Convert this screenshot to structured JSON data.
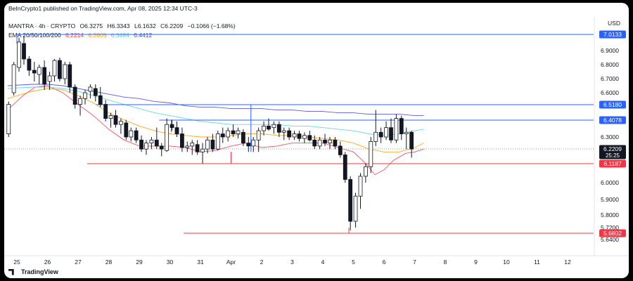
{
  "header": {
    "published": "BeInCrypto1 published on TradingView.com, Apr 08, 2025 12:34 UTC-3",
    "symbol": "MANTRA · 4h · CRYPTO",
    "ohlc": {
      "o": "O6.3275",
      "h": "H6.3343",
      "l": "L6.1632",
      "c": "C6.2209",
      "chg": "−0.1066 (−1.68%)"
    },
    "ema_label": "EMA 20/50/100/200",
    "ema_values": [
      {
        "value": "6.2214",
        "color": "#f23645"
      },
      {
        "value": "6.2605",
        "color": "#ff9800"
      },
      {
        "value": "6.3484",
        "color": "#4dd0e1"
      },
      {
        "value": "6.4412",
        "color": "#3f3fd0"
      }
    ],
    "currency": "USD"
  },
  "footer": {
    "brand": "TradingView"
  },
  "chart_data": {
    "type": "candlestick",
    "x_tick_labels": [
      "25",
      "26",
      "27",
      "28",
      "29",
      "30",
      "31",
      "Apr",
      "2",
      "3",
      "4",
      "5",
      "6",
      "7",
      "8",
      "9",
      "10",
      "11",
      "12"
    ],
    "y_tick_labels": [
      "6.9000",
      "6.8000",
      "6.7000",
      "6.6000",
      "6.3000",
      "6.0000",
      "5.9000",
      "5.8000",
      "5.7200",
      "5.6400"
    ],
    "y_ticks": [
      6.9,
      6.8,
      6.7,
      6.6,
      6.3,
      6.0,
      5.9,
      5.8,
      5.72,
      5.64
    ],
    "price_labels": [
      {
        "text": "7.0133",
        "value": 7.0133,
        "color": "#2962ff"
      },
      {
        "text": "6.5180",
        "value": 6.518,
        "color": "#2962ff"
      },
      {
        "text": "6.4078",
        "value": 6.4078,
        "color": "#2962ff"
      },
      {
        "text": "6.2209",
        "sub": "25:25",
        "value": 6.2209,
        "color": "#131722"
      },
      {
        "text": "6.1187",
        "value": 6.1187,
        "color": "#f23645"
      },
      {
        "text": "5.6802",
        "value": 5.6802,
        "color": "#f23645"
      }
    ],
    "horizontal_levels": [
      {
        "value": 7.0133,
        "color": "#2962ff",
        "from": 25.0
      },
      {
        "value": 6.518,
        "color": "#2962ff",
        "from": 27.6
      },
      {
        "value": 6.4078,
        "color": "#2962ff",
        "from": 29.65
      },
      {
        "value": 6.1187,
        "color": "#f23645",
        "from": 27.3
      },
      {
        "value": 5.6802,
        "color": "#f23645",
        "from": 30.45
      }
    ],
    "ema_lines": [
      {
        "name": "EMA 20",
        "color": "#f23645",
        "points": [
          [
            24.7,
            6.48
          ],
          [
            25.2,
            6.58
          ],
          [
            25.6,
            6.64
          ],
          [
            26.0,
            6.65
          ],
          [
            26.5,
            6.6
          ],
          [
            27.0,
            6.52
          ],
          [
            27.5,
            6.44
          ],
          [
            28.0,
            6.35
          ],
          [
            28.5,
            6.28
          ],
          [
            29.0,
            6.24
          ],
          [
            29.5,
            6.24
          ],
          [
            30.0,
            6.24
          ],
          [
            30.5,
            6.23
          ],
          [
            31.0,
            6.2
          ],
          [
            31.5,
            6.21
          ],
          [
            32.0,
            6.24
          ],
          [
            32.5,
            6.26
          ],
          [
            33.0,
            6.23
          ],
          [
            33.5,
            6.24
          ],
          [
            34.0,
            6.26
          ],
          [
            34.5,
            6.26
          ],
          [
            35.0,
            6.26
          ],
          [
            35.5,
            6.23
          ],
          [
            36.0,
            6.2
          ],
          [
            36.4,
            6.12
          ],
          [
            36.7,
            6.05
          ],
          [
            37.0,
            6.08
          ],
          [
            37.3,
            6.14
          ],
          [
            37.7,
            6.19
          ],
          [
            38.0,
            6.2
          ],
          [
            38.3,
            6.22
          ]
        ]
      },
      {
        "name": "EMA 50",
        "color": "#ff9800",
        "points": [
          [
            24.7,
            6.56
          ],
          [
            25.5,
            6.61
          ],
          [
            26.0,
            6.63
          ],
          [
            26.5,
            6.62
          ],
          [
            27.0,
            6.58
          ],
          [
            27.5,
            6.53
          ],
          [
            28.0,
            6.46
          ],
          [
            28.5,
            6.41
          ],
          [
            29.0,
            6.37
          ],
          [
            29.5,
            6.34
          ],
          [
            30.0,
            6.32
          ],
          [
            30.5,
            6.31
          ],
          [
            31.0,
            6.3
          ],
          [
            31.5,
            6.3
          ],
          [
            32.0,
            6.31
          ],
          [
            32.5,
            6.32
          ],
          [
            33.0,
            6.32
          ],
          [
            33.5,
            6.31
          ],
          [
            34.0,
            6.31
          ],
          [
            34.5,
            6.3
          ],
          [
            35.0,
            6.29
          ],
          [
            35.5,
            6.28
          ],
          [
            36.0,
            6.26
          ],
          [
            36.5,
            6.22
          ],
          [
            37.0,
            6.2
          ],
          [
            37.5,
            6.2
          ],
          [
            38.0,
            6.23
          ],
          [
            38.3,
            6.26
          ]
        ]
      },
      {
        "name": "EMA 100",
        "color": "#4dd0e1",
        "points": [
          [
            24.7,
            6.63
          ],
          [
            25.5,
            6.64
          ],
          [
            26.0,
            6.64
          ],
          [
            26.5,
            6.63
          ],
          [
            27.0,
            6.61
          ],
          [
            27.5,
            6.58
          ],
          [
            28.0,
            6.55
          ],
          [
            28.5,
            6.52
          ],
          [
            29.0,
            6.49
          ],
          [
            29.5,
            6.46
          ],
          [
            30.0,
            6.44
          ],
          [
            30.5,
            6.42
          ],
          [
            31.0,
            6.4
          ],
          [
            31.5,
            6.39
          ],
          [
            32.0,
            6.38
          ],
          [
            32.5,
            6.38
          ],
          [
            33.0,
            6.38
          ],
          [
            33.5,
            6.38
          ],
          [
            34.0,
            6.37
          ],
          [
            34.5,
            6.37
          ],
          [
            35.0,
            6.36
          ],
          [
            35.5,
            6.35
          ],
          [
            36.0,
            6.34
          ],
          [
            36.5,
            6.32
          ],
          [
            37.0,
            6.31
          ],
          [
            37.5,
            6.32
          ],
          [
            38.0,
            6.34
          ],
          [
            38.3,
            6.35
          ]
        ]
      },
      {
        "name": "EMA 200",
        "color": "#3f3fd0",
        "points": [
          [
            24.7,
            6.65
          ],
          [
            25.5,
            6.66
          ],
          [
            26.0,
            6.66
          ],
          [
            26.5,
            6.65
          ],
          [
            27.0,
            6.63
          ],
          [
            27.5,
            6.61
          ],
          [
            28.0,
            6.59
          ],
          [
            28.5,
            6.57
          ],
          [
            29.0,
            6.56
          ],
          [
            29.5,
            6.54
          ],
          [
            30.0,
            6.53
          ],
          [
            30.5,
            6.51
          ],
          [
            31.0,
            6.5
          ],
          [
            31.5,
            6.5
          ],
          [
            32.0,
            6.49
          ],
          [
            32.5,
            6.49
          ],
          [
            33.0,
            6.49
          ],
          [
            33.5,
            6.48
          ],
          [
            34.0,
            6.48
          ],
          [
            34.5,
            6.47
          ],
          [
            35.0,
            6.47
          ],
          [
            35.5,
            6.46
          ],
          [
            36.0,
            6.46
          ],
          [
            36.5,
            6.45
          ],
          [
            37.0,
            6.45
          ],
          [
            37.5,
            6.45
          ],
          [
            38.0,
            6.44
          ],
          [
            38.3,
            6.44
          ]
        ]
      }
    ],
    "candles": [
      {
        "t": 24.73,
        "o": 6.32,
        "h": 6.54,
        "l": 6.3,
        "c": 6.52
      },
      {
        "t": 24.9,
        "o": 6.6,
        "h": 6.82,
        "l": 6.58,
        "c": 6.8
      },
      {
        "t": 25.07,
        "o": 6.78,
        "h": 6.99,
        "l": 6.75,
        "c": 6.96
      },
      {
        "t": 25.23,
        "o": 6.95,
        "h": 7.0,
        "l": 6.8,
        "c": 6.84
      },
      {
        "t": 25.4,
        "o": 6.84,
        "h": 6.86,
        "l": 6.72,
        "c": 6.76
      },
      {
        "t": 25.57,
        "o": 6.76,
        "h": 6.82,
        "l": 6.68,
        "c": 6.74
      },
      {
        "t": 25.73,
        "o": 6.73,
        "h": 6.8,
        "l": 6.66,
        "c": 6.78
      },
      {
        "t": 25.9,
        "o": 6.78,
        "h": 6.83,
        "l": 6.62,
        "c": 6.66
      },
      {
        "t": 26.07,
        "o": 6.68,
        "h": 6.75,
        "l": 6.62,
        "c": 6.72
      },
      {
        "t": 26.23,
        "o": 6.72,
        "h": 6.84,
        "l": 6.68,
        "c": 6.83
      },
      {
        "t": 26.4,
        "o": 6.83,
        "h": 6.85,
        "l": 6.68,
        "c": 6.7
      },
      {
        "t": 26.57,
        "o": 6.7,
        "h": 6.82,
        "l": 6.66,
        "c": 6.8
      },
      {
        "t": 26.73,
        "o": 6.8,
        "h": 6.82,
        "l": 6.6,
        "c": 6.64
      },
      {
        "t": 26.9,
        "o": 6.64,
        "h": 6.66,
        "l": 6.49,
        "c": 6.52
      },
      {
        "t": 27.07,
        "o": 6.52,
        "h": 6.58,
        "l": 6.44,
        "c": 6.56
      },
      {
        "t": 27.23,
        "o": 6.56,
        "h": 6.62,
        "l": 6.52,
        "c": 6.6
      },
      {
        "t": 27.4,
        "o": 6.61,
        "h": 6.66,
        "l": 6.56,
        "c": 6.64
      },
      {
        "t": 27.57,
        "o": 6.63,
        "h": 6.66,
        "l": 6.54,
        "c": 6.58
      },
      {
        "t": 27.73,
        "o": 6.58,
        "h": 6.64,
        "l": 6.5,
        "c": 6.52
      },
      {
        "t": 27.9,
        "o": 6.52,
        "h": 6.55,
        "l": 6.4,
        "c": 6.42
      },
      {
        "t": 28.07,
        "o": 6.42,
        "h": 6.46,
        "l": 6.36,
        "c": 6.44
      },
      {
        "t": 28.23,
        "o": 6.44,
        "h": 6.48,
        "l": 6.36,
        "c": 6.38
      },
      {
        "t": 28.4,
        "o": 6.38,
        "h": 6.42,
        "l": 6.32,
        "c": 6.4
      },
      {
        "t": 28.57,
        "o": 6.39,
        "h": 6.41,
        "l": 6.28,
        "c": 6.3
      },
      {
        "t": 28.73,
        "o": 6.3,
        "h": 6.36,
        "l": 6.27,
        "c": 6.34
      },
      {
        "t": 28.9,
        "o": 6.34,
        "h": 6.36,
        "l": 6.26,
        "c": 6.28
      },
      {
        "t": 29.07,
        "o": 6.28,
        "h": 6.31,
        "l": 6.2,
        "c": 6.22
      },
      {
        "t": 29.23,
        "o": 6.22,
        "h": 6.28,
        "l": 6.18,
        "c": 6.26
      },
      {
        "t": 29.4,
        "o": 6.26,
        "h": 6.3,
        "l": 6.22,
        "c": 6.28
      },
      {
        "t": 29.57,
        "o": 6.28,
        "h": 6.36,
        "l": 6.22,
        "c": 6.24
      },
      {
        "t": 29.73,
        "o": 6.24,
        "h": 6.26,
        "l": 6.17,
        "c": 6.22
      },
      {
        "t": 29.9,
        "o": 6.21,
        "h": 6.42,
        "l": 6.2,
        "c": 6.38
      },
      {
        "t": 30.07,
        "o": 6.38,
        "h": 6.41,
        "l": 6.34,
        "c": 6.36
      },
      {
        "t": 30.23,
        "o": 6.36,
        "h": 6.4,
        "l": 6.3,
        "c": 6.32
      },
      {
        "t": 30.4,
        "o": 6.32,
        "h": 6.36,
        "l": 6.2,
        "c": 6.23
      },
      {
        "t": 30.57,
        "o": 6.23,
        "h": 6.27,
        "l": 6.2,
        "c": 6.24
      },
      {
        "t": 30.73,
        "o": 6.24,
        "h": 6.28,
        "l": 6.18,
        "c": 6.26
      },
      {
        "t": 30.9,
        "o": 6.25,
        "h": 6.28,
        "l": 6.18,
        "c": 6.2
      },
      {
        "t": 31.07,
        "o": 6.2,
        "h": 6.26,
        "l": 6.12,
        "c": 6.22
      },
      {
        "t": 31.23,
        "o": 6.22,
        "h": 6.3,
        "l": 6.19,
        "c": 6.28
      },
      {
        "t": 31.4,
        "o": 6.28,
        "h": 6.32,
        "l": 6.2,
        "c": 6.22
      },
      {
        "t": 31.57,
        "o": 6.22,
        "h": 6.34,
        "l": 6.21,
        "c": 6.32
      },
      {
        "t": 31.73,
        "o": 6.32,
        "h": 6.36,
        "l": 6.26,
        "c": 6.3
      },
      {
        "t": 31.9,
        "o": 6.3,
        "h": 6.36,
        "l": 6.27,
        "c": 6.34
      },
      {
        "t": 32.07,
        "o": 6.34,
        "h": 6.38,
        "l": 6.3,
        "c": 6.32
      },
      {
        "t": 32.23,
        "o": 6.32,
        "h": 6.36,
        "l": 6.29,
        "c": 6.34
      },
      {
        "t": 32.4,
        "o": 6.33,
        "h": 6.35,
        "l": 6.24,
        "c": 6.26
      },
      {
        "t": 32.57,
        "o": 6.26,
        "h": 6.3,
        "l": 6.2,
        "c": 6.24
      },
      {
        "t": 32.73,
        "o": 6.24,
        "h": 6.3,
        "l": 6.2,
        "c": 6.28
      },
      {
        "t": 32.9,
        "o": 6.28,
        "h": 6.36,
        "l": 6.2,
        "c": 6.34
      },
      {
        "t": 33.07,
        "o": 6.34,
        "h": 6.4,
        "l": 6.31,
        "c": 6.37
      },
      {
        "t": 33.23,
        "o": 6.37,
        "h": 6.42,
        "l": 6.34,
        "c": 6.35
      },
      {
        "t": 33.4,
        "o": 6.36,
        "h": 6.4,
        "l": 6.32,
        "c": 6.38
      },
      {
        "t": 33.57,
        "o": 6.38,
        "h": 6.4,
        "l": 6.3,
        "c": 6.33
      },
      {
        "t": 33.73,
        "o": 6.33,
        "h": 6.36,
        "l": 6.28,
        "c": 6.34
      },
      {
        "t": 33.9,
        "o": 6.34,
        "h": 6.36,
        "l": 6.28,
        "c": 6.3
      },
      {
        "t": 34.07,
        "o": 6.3,
        "h": 6.34,
        "l": 6.28,
        "c": 6.32
      },
      {
        "t": 34.23,
        "o": 6.32,
        "h": 6.34,
        "l": 6.27,
        "c": 6.29
      },
      {
        "t": 34.4,
        "o": 6.29,
        "h": 6.33,
        "l": 6.26,
        "c": 6.31
      },
      {
        "t": 34.57,
        "o": 6.31,
        "h": 6.34,
        "l": 6.27,
        "c": 6.28
      },
      {
        "t": 34.73,
        "o": 6.28,
        "h": 6.31,
        "l": 6.22,
        "c": 6.24
      },
      {
        "t": 34.9,
        "o": 6.24,
        "h": 6.3,
        "l": 6.22,
        "c": 6.28
      },
      {
        "t": 35.07,
        "o": 6.28,
        "h": 6.32,
        "l": 6.24,
        "c": 6.26
      },
      {
        "t": 35.23,
        "o": 6.26,
        "h": 6.3,
        "l": 6.22,
        "c": 6.28
      },
      {
        "t": 35.4,
        "o": 6.28,
        "h": 6.3,
        "l": 6.22,
        "c": 6.24
      },
      {
        "t": 35.57,
        "o": 6.24,
        "h": 6.27,
        "l": 6.16,
        "c": 6.18
      },
      {
        "t": 35.73,
        "o": 6.18,
        "h": 6.2,
        "l": 6.0,
        "c": 6.02
      },
      {
        "t": 35.9,
        "o": 6.02,
        "h": 6.04,
        "l": 5.7,
        "c": 5.76
      },
      {
        "t": 36.07,
        "o": 5.76,
        "h": 5.94,
        "l": 5.72,
        "c": 5.92
      },
      {
        "t": 36.23,
        "o": 5.92,
        "h": 6.06,
        "l": 5.84,
        "c": 6.04
      },
      {
        "t": 36.4,
        "o": 6.04,
        "h": 6.12,
        "l": 6.0,
        "c": 6.1
      },
      {
        "t": 36.57,
        "o": 6.1,
        "h": 6.3,
        "l": 6.06,
        "c": 6.27
      },
      {
        "t": 36.73,
        "o": 6.27,
        "h": 6.48,
        "l": 6.24,
        "c": 6.33
      },
      {
        "t": 36.9,
        "o": 6.33,
        "h": 6.36,
        "l": 6.26,
        "c": 6.3
      },
      {
        "t": 37.07,
        "o": 6.3,
        "h": 6.4,
        "l": 6.28,
        "c": 6.36
      },
      {
        "t": 37.23,
        "o": 6.36,
        "h": 6.42,
        "l": 6.26,
        "c": 6.28
      },
      {
        "t": 37.4,
        "o": 6.28,
        "h": 6.45,
        "l": 6.26,
        "c": 6.42
      },
      {
        "t": 37.57,
        "o": 6.42,
        "h": 6.44,
        "l": 6.28,
        "c": 6.32
      },
      {
        "t": 37.73,
        "o": 6.32,
        "h": 6.36,
        "l": 6.22,
        "c": 6.33
      },
      {
        "t": 37.9,
        "o": 6.33,
        "h": 6.34,
        "l": 6.16,
        "c": 6.22
      }
    ]
  }
}
